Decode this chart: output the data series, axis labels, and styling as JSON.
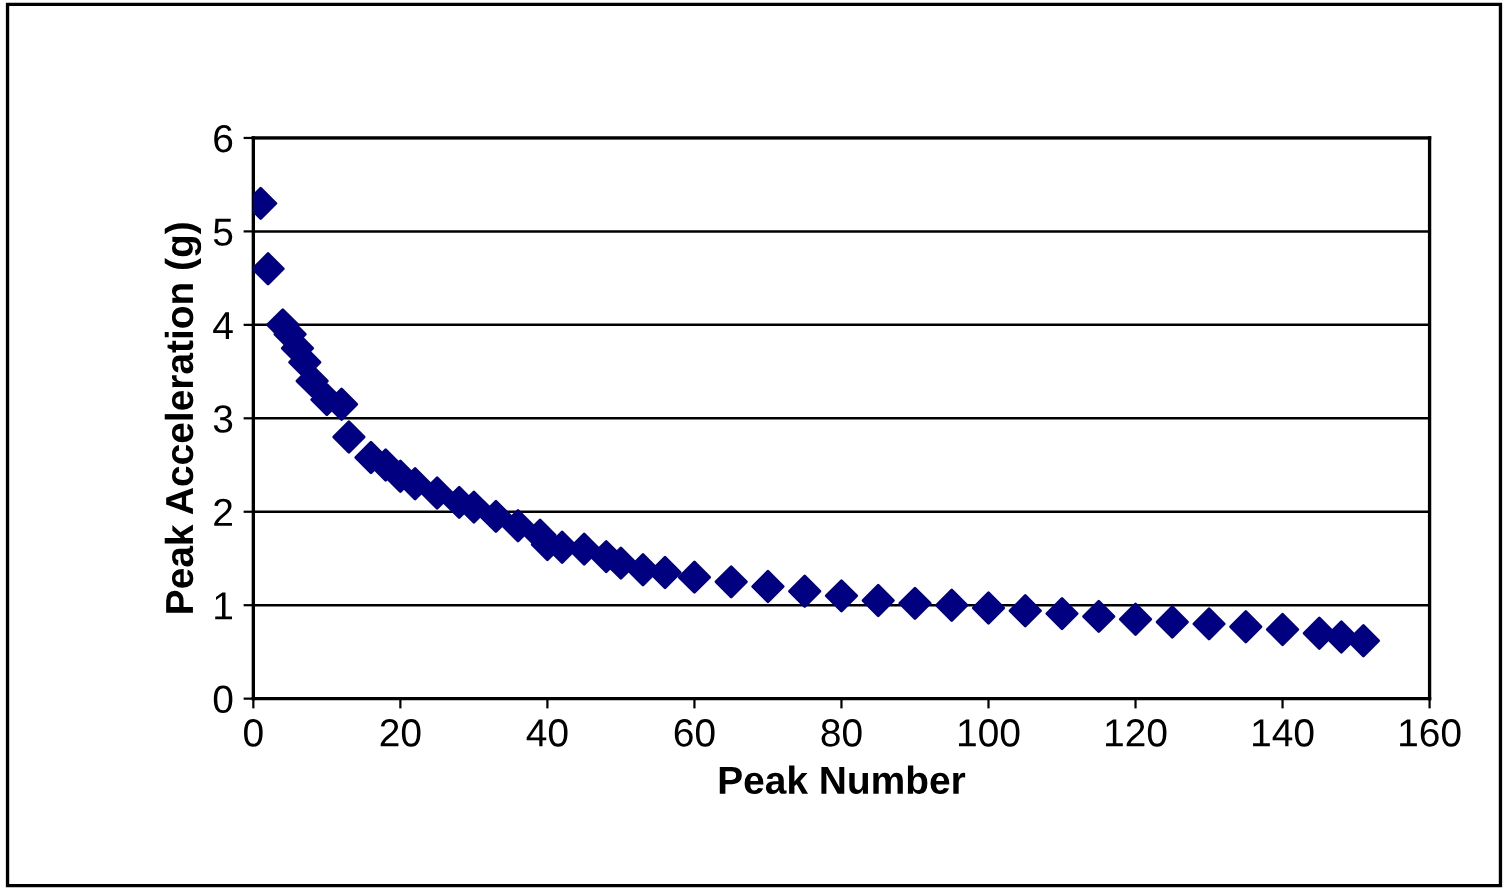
{
  "chart_data": {
    "type": "scatter",
    "xlabel": "Peak Number",
    "ylabel": "Peak Acceleration (g)",
    "x": [
      1,
      2,
      4,
      5,
      6,
      7,
      8,
      10,
      12,
      13,
      16,
      18,
      20,
      22,
      25,
      28,
      30,
      33,
      36,
      39,
      40,
      42,
      45,
      48,
      50,
      53,
      56,
      60,
      65,
      70,
      75,
      80,
      85,
      90,
      95,
      100,
      105,
      110,
      115,
      120,
      125,
      130,
      135,
      140,
      145,
      148,
      151
    ],
    "series": [
      {
        "color": "#000080",
        "values": [
          5.3,
          4.6,
          4.0,
          3.9,
          3.75,
          3.6,
          3.4,
          3.2,
          3.15,
          2.8,
          2.58,
          2.5,
          2.38,
          2.3,
          2.2,
          2.1,
          2.05,
          1.95,
          1.85,
          1.75,
          1.65,
          1.62,
          1.6,
          1.52,
          1.45,
          1.38,
          1.35,
          1.3,
          1.25,
          1.2,
          1.15,
          1.1,
          1.05,
          1.02,
          1.0,
          0.97,
          0.94,
          0.91,
          0.88,
          0.85,
          0.82,
          0.8,
          0.77,
          0.74,
          0.7,
          0.66,
          0.62
        ]
      }
    ],
    "marker": "diamond",
    "grid": "y",
    "xlim": [
      0,
      160
    ],
    "xticks": [
      0,
      20,
      40,
      60,
      80,
      100,
      120,
      140,
      160
    ],
    "ylim": [
      0,
      6
    ],
    "yticks": [
      0,
      1,
      2,
      3,
      4,
      5,
      6
    ]
  }
}
